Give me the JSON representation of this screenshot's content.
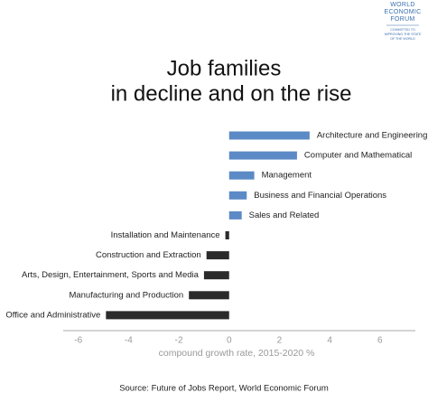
{
  "logo": {
    "name": [
      "WORLD",
      "ECONOMIC",
      "FORUM"
    ],
    "tagline": [
      "COMMITTED TO",
      "IMPROVING THE STATE",
      "OF THE WORLD"
    ]
  },
  "chart_data": {
    "type": "bar",
    "orientation": "horizontal",
    "title": [
      "Job families",
      "in decline and on the rise"
    ],
    "categories": [
      "Architecture and Engineering",
      "Computer and Mathematical",
      "Management",
      "Business and Financial Operations",
      "Sales and Related",
      "Installation and Maintenance",
      "Construction and Extraction",
      "Arts, Design, Entertainment, Sports and Media",
      "Manufacturing and Production",
      "Office and Administrative"
    ],
    "values": [
      3.2,
      2.7,
      1.0,
      0.7,
      0.5,
      -0.15,
      -0.9,
      -1.0,
      -1.6,
      -4.9
    ],
    "positive_color": "#5b8ac6",
    "negative_color": "#2b2b2b",
    "xlim": [
      -6.6,
      7.3
    ],
    "xticks": [
      -6,
      -4,
      -2,
      0,
      2,
      4,
      6
    ],
    "xlabel": "compound growth rate, 2015-2020 %",
    "source": "Source: Future of Jobs Report, World Economic Forum",
    "grid": false
  }
}
